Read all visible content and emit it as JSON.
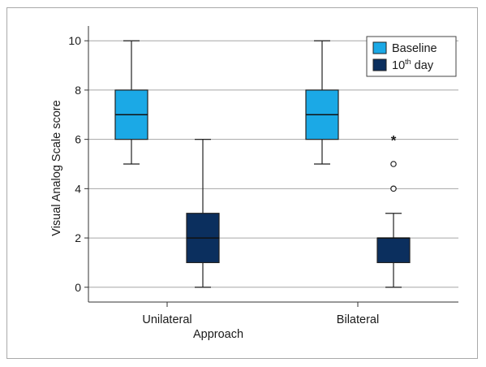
{
  "chart_data": {
    "type": "box",
    "xlabel": "Approach",
    "ylabel": "Visual Analog Scale score",
    "categories": [
      "Unilateral",
      "Bilateral"
    ],
    "ylim": [
      -0.6,
      10.6
    ],
    "yticks": [
      0,
      2,
      4,
      6,
      8,
      10
    ],
    "grid": "horizontal",
    "legend_position": "top-right",
    "series": [
      {
        "name": "Baseline",
        "legend_main": "Baseline",
        "color": "#1ba9e6",
        "boxes": [
          {
            "min": 5,
            "q1": 6,
            "median": 7,
            "q3": 8,
            "max": 10,
            "outliers": [],
            "extremes": []
          },
          {
            "min": 5,
            "q1": 6,
            "median": 7,
            "q3": 8,
            "max": 10,
            "outliers": [],
            "extremes": []
          }
        ]
      },
      {
        "name": "10th day",
        "legend_main": "10",
        "legend_sup": "th",
        "legend_rest": " day",
        "color": "#0b2f5e",
        "boxes": [
          {
            "min": 0,
            "q1": 1,
            "median": 2,
            "q3": 3,
            "max": 6,
            "outliers": [],
            "extremes": []
          },
          {
            "min": 0,
            "q1": 1,
            "median": 2,
            "q3": 2,
            "max": 3,
            "outliers": [
              4,
              5
            ],
            "extremes": [
              6
            ]
          }
        ]
      }
    ]
  }
}
